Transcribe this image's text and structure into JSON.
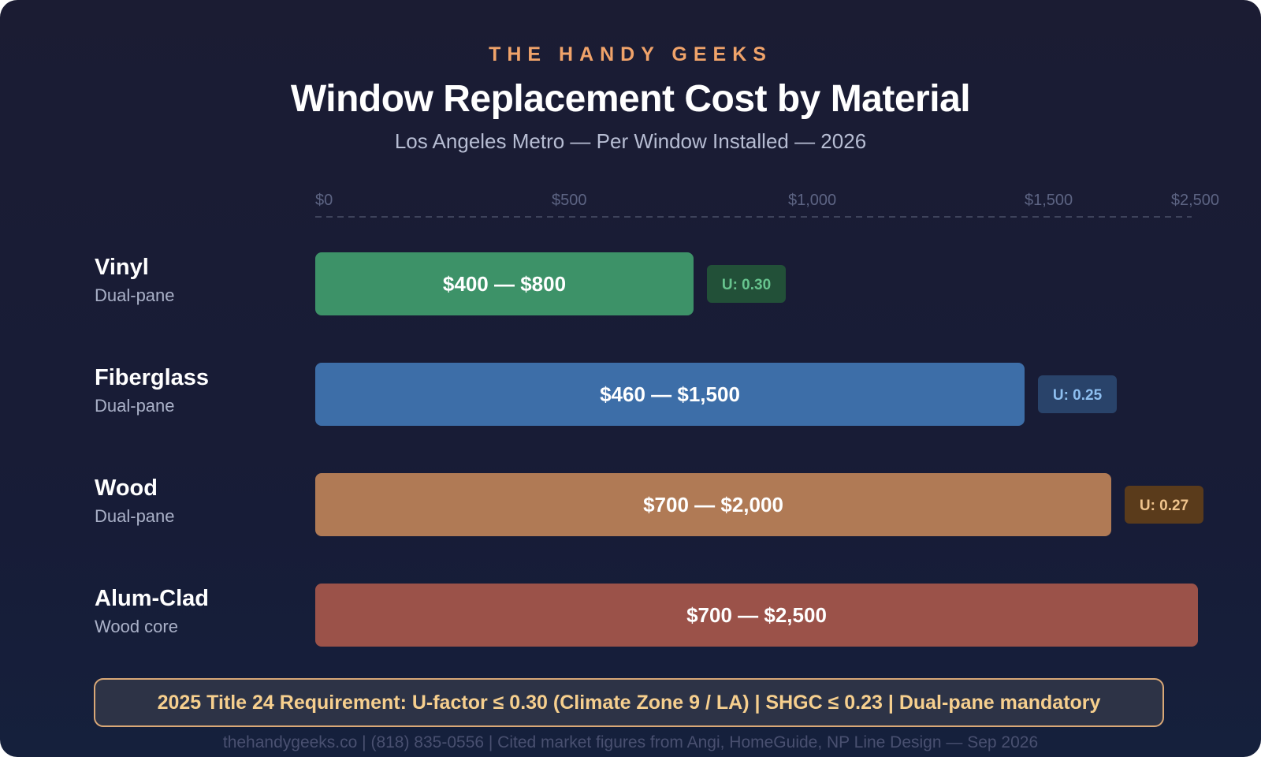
{
  "header": {
    "brand": "THE HANDY GEEKS",
    "title": "Window Replacement Cost by Material",
    "subtitle": "Los Angeles Metro — Per Window Installed — 2026"
  },
  "chart_data": {
    "type": "bar",
    "orientation": "horizontal",
    "subtype": "range",
    "title": "Window Replacement Cost by Material",
    "subtitle": "Los Angeles Metro — Per Window Installed — 2026",
    "axis": {
      "ticks": [
        {
          "value": 0,
          "label": "$0"
        },
        {
          "value": 500,
          "label": "$500"
        },
        {
          "value": 1000,
          "label": "$1,000"
        },
        {
          "value": 1500,
          "label": "$1,500"
        },
        {
          "value": 2500,
          "label": "$2,500"
        }
      ],
      "position": "top",
      "gridline": "dashed"
    },
    "categories": [
      "Vinyl",
      "Fiberglass",
      "Wood",
      "Alum-Clad"
    ],
    "series": [
      {
        "category": "Vinyl",
        "sub": "Dual-pane",
        "low": 400,
        "high": 800,
        "label": "$400 — $800",
        "u_factor": "U: 0.30",
        "color": "#3d9268",
        "badge_bg": "#225038",
        "badge_fg": "#67c48e"
      },
      {
        "category": "Fiberglass",
        "sub": "Dual-pane",
        "low": 460,
        "high": 1500,
        "label": "$460 — $1,500",
        "u_factor": "U: 0.25",
        "color": "#3d6ea8",
        "badge_bg": "#29436a",
        "badge_fg": "#8ebff0"
      },
      {
        "category": "Wood",
        "sub": "Dual-pane",
        "low": 700,
        "high": 2000,
        "label": "$700 — $2,000",
        "u_factor": "U: 0.27",
        "color": "#b07a55",
        "badge_bg": "#5a3b1b",
        "badge_fg": "#f0c48c"
      },
      {
        "category": "Alum-Clad",
        "sub": "Wood core",
        "low": 700,
        "high": 2500,
        "label": "$700 — $2,500",
        "u_factor": null,
        "color": "#9b5249"
      }
    ]
  },
  "requirement": "2025 Title 24 Requirement: U-factor ≤ 0.30 (Climate Zone 9 / LA) | SHGC ≤ 0.23 | Dual-pane mandatory",
  "footer": "thehandygeeks.co | (818) 835-0556 | Cited market figures from Angi, HomeGuide, NP Line Design — Sep 2026"
}
